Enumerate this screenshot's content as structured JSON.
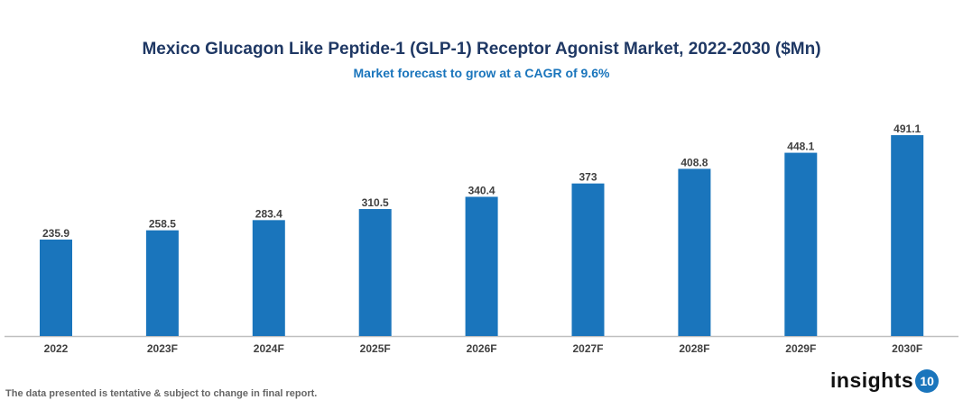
{
  "chart_data": {
    "type": "bar",
    "title": "Mexico Glucagon Like Peptide-1 (GLP-1) Receptor Agonist Market, 2022-2030 ($Mn)",
    "subtitle": "Market forecast to grow at a CAGR of 9.6%",
    "categories": [
      "2022",
      "2023F",
      "2024F",
      "2025F",
      "2026F",
      "2027F",
      "2028F",
      "2029F",
      "2030F"
    ],
    "values": [
      235.9,
      258.5,
      283.4,
      310.5,
      340.4,
      373,
      408.8,
      448.1,
      491.1
    ],
    "value_labels": [
      "235.9",
      "258.5",
      "283.4",
      "310.5",
      "340.4",
      "373",
      "408.8",
      "448.1",
      "491.1"
    ],
    "xlabel": "",
    "ylabel": "",
    "ylim": [
      0,
      500
    ],
    "grid": false,
    "bar_color": "#1a75bc"
  },
  "footer": "The data presented is tentative & subject to change in final report.",
  "logo": {
    "text": "insights",
    "badge": "10"
  }
}
